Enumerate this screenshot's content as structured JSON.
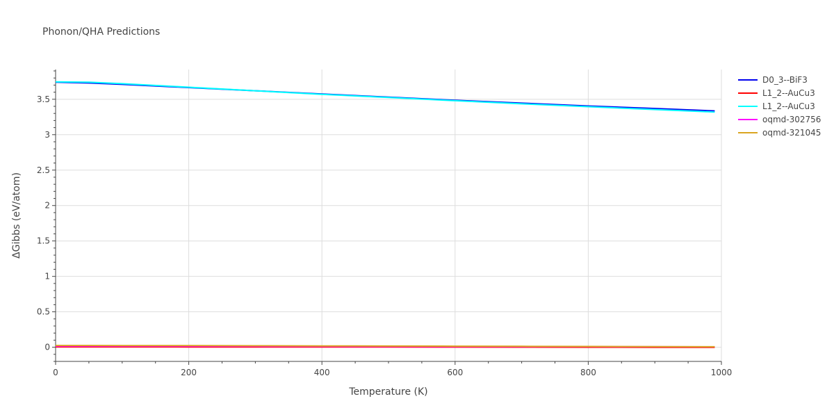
{
  "chart_data": {
    "type": "line",
    "title": "Phonon/QHA Predictions",
    "xlabel": "Temperature (K)",
    "ylabel": "ΔGibbs (eV/atom)",
    "xlim": [
      0,
      1000
    ],
    "ylim": [
      -0.2,
      3.92
    ],
    "x_ticks": [
      0,
      200,
      400,
      600,
      800,
      1000
    ],
    "x_tick_labels": [
      "0",
      "200",
      "400",
      "600",
      "800",
      "1000"
    ],
    "y_ticks": [
      0,
      0.5,
      1,
      1.5,
      2,
      2.5,
      3,
      3.5
    ],
    "y_tick_labels": [
      "0",
      "0.5",
      "1",
      "1.5",
      "2",
      "2.5",
      "3",
      "3.5"
    ],
    "grid": true,
    "legend_position": "top-right",
    "series": [
      {
        "name": "D0_3--BiF3",
        "color": "#0000ee",
        "x": [
          0,
          50,
          100,
          200,
          300,
          400,
          500,
          600,
          700,
          800,
          900,
          990
        ],
        "y": [
          3.74,
          3.73,
          3.71,
          3.665,
          3.62,
          3.575,
          3.53,
          3.485,
          3.445,
          3.405,
          3.37,
          3.335
        ]
      },
      {
        "name": "L1_2--AuCu3",
        "color": "#ff0000",
        "x": [
          0,
          100,
          200,
          300,
          400,
          500,
          600,
          700,
          800,
          900,
          990
        ],
        "y": [
          0.005,
          0.005,
          0.004,
          0.004,
          0.003,
          0.003,
          0.002,
          0.001,
          0.0,
          -0.001,
          -0.002
        ]
      },
      {
        "name": "L1_2--AuCu3",
        "color": "#00ffff",
        "x": [
          0,
          50,
          100,
          200,
          300,
          400,
          500,
          600,
          700,
          800,
          900,
          990
        ],
        "y": [
          3.745,
          3.74,
          3.72,
          3.67,
          3.62,
          3.57,
          3.525,
          3.48,
          3.435,
          3.395,
          3.355,
          3.32
        ]
      },
      {
        "name": "oqmd-302756",
        "color": "#ff00ff",
        "x": [
          0,
          100,
          200,
          300,
          400,
          500,
          600,
          700,
          800,
          900,
          990
        ],
        "y": [
          0.015,
          0.015,
          0.014,
          0.013,
          0.012,
          0.011,
          0.01,
          0.009,
          0.008,
          0.007,
          0.006
        ]
      },
      {
        "name": "oqmd-321045",
        "color": "#daa520",
        "x": [
          0,
          100,
          200,
          300,
          400,
          500,
          600,
          700,
          800,
          900,
          990
        ],
        "y": [
          0.025,
          0.024,
          0.023,
          0.021,
          0.019,
          0.017,
          0.015,
          0.013,
          0.011,
          0.009,
          0.007
        ]
      }
    ]
  }
}
